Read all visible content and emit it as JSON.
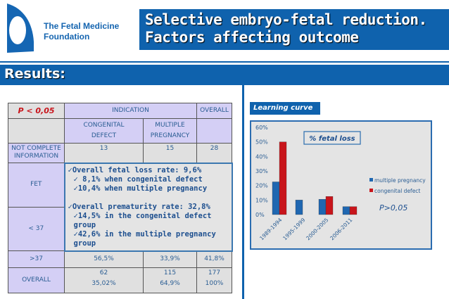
{
  "header": {
    "org_line1": "The Fetal Medicine",
    "org_line2": "Foundation",
    "title_line1": "Selective embryo-fetal reduction.",
    "title_line2": "Factors affecting outcome"
  },
  "section": "Results:",
  "table": {
    "p_value": "P < 0,05",
    "indication": "INDICATION",
    "overall": "OVERALL",
    "col1": [
      "CONGENITAL",
      "DEFECT"
    ],
    "col2": [
      "MULTIPLE",
      "PREGNANCY"
    ],
    "rows": [
      {
        "label": "NOT COMPLETE INFORMATION",
        "c1": "13",
        "c2": "15",
        "c3": "28"
      },
      {
        "label": "FET",
        "c1": "",
        "c2": "",
        "c3": ""
      },
      {
        "label": "< 37",
        "c1": "",
        "c2": "",
        "c3": ""
      },
      {
        "label": ">37",
        "c1": "56,5%",
        "c2": "33,9%",
        "c3": "41,8%"
      },
      {
        "label": "OVERALL",
        "c1": "62",
        "c1b": "35,02%",
        "c2": "115",
        "c2b": "64,9%",
        "c3": "177",
        "c3b": "100%"
      }
    ]
  },
  "overlay": {
    "lines": [
      "✓Overall fetal loss rate:  9,6%",
      "      ✓ 8,1% when congenital defect",
      "      ✓10,4% when multiple pregnancy",
      "",
      "✓Overall prematurity rate: 32,8%",
      "      ✓14,5% in the congenital defect group",
      "      ✓42,6% in the multiple pregnancy group"
    ]
  },
  "chart_label": "Learning curve",
  "chart_data": {
    "type": "bar",
    "title": "% fetal loss",
    "categories": [
      "1989-1994",
      "1995-1999",
      "2000-2005",
      "2006-2011"
    ],
    "series": [
      {
        "name": "multiple pregnancy",
        "color": "#1f67b1",
        "values": [
          22.5,
          10,
          10.5,
          5.5
        ]
      },
      {
        "name": "congenital defect",
        "color": "#c8151b",
        "values": [
          50,
          0,
          12.5,
          5.5
        ]
      }
    ],
    "yticks": [
      "0%",
      "10%",
      "20%",
      "30%",
      "40%",
      "50%",
      "60%"
    ],
    "ylim": [
      0,
      60
    ],
    "legend": "right",
    "annotation": "P>0,05"
  }
}
